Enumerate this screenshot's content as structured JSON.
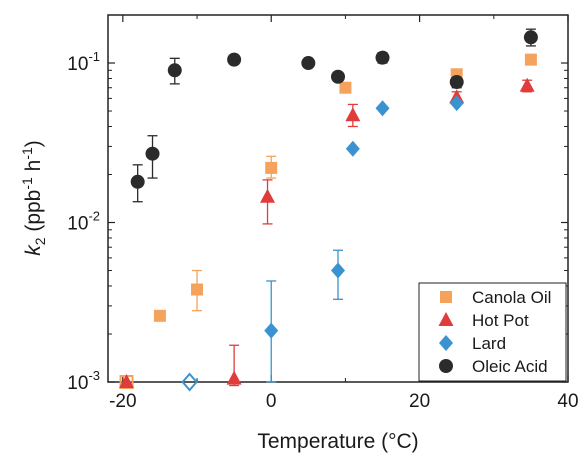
{
  "chart_data": {
    "type": "scatter",
    "xlabel": "Temperature (°C)",
    "ylabel": {
      "base": "k",
      "sub": "2",
      "unit_open": " (ppb",
      "sup1": "-1",
      "unit_mid": " h",
      "sup2": "-1",
      "unit_close": ")"
    },
    "xlim": [
      -22,
      40
    ],
    "ylim": [
      0.001,
      0.2
    ],
    "yscale": "log",
    "x_ticks": [
      -20,
      0,
      20,
      40
    ],
    "x_tick_labels": [
      "-20",
      "0",
      "20",
      "40"
    ],
    "y_ticks": [
      0.001,
      0.01,
      0.1
    ],
    "y_tick_labels": [
      {
        "base": "10",
        "exp": "-3"
      },
      {
        "base": "10",
        "exp": "-2"
      },
      {
        "base": "10",
        "exp": "-1"
      }
    ],
    "legend_position": "bottom-right",
    "series": [
      {
        "name": "Canola Oil",
        "color": "#f5a35c",
        "marker": "square",
        "points": [
          {
            "x": -19.5,
            "y": 0.001,
            "hollow": true
          },
          {
            "x": -15,
            "y": 0.0026
          },
          {
            "x": -10,
            "y": 0.0038,
            "lo": 0.0028,
            "hi": 0.005
          },
          {
            "x": 0,
            "y": 0.022,
            "lo": 0.019,
            "hi": 0.026
          },
          {
            "x": 10,
            "y": 0.07
          },
          {
            "x": 25,
            "y": 0.085
          },
          {
            "x": 35,
            "y": 0.105
          }
        ]
      },
      {
        "name": "Hot Pot",
        "color": "#e03c3c",
        "marker": "triangle",
        "points": [
          {
            "x": -19.5,
            "y": 0.001
          },
          {
            "x": -5,
            "y": 0.00105,
            "lo": 0.00095,
            "hi": 0.0017
          },
          {
            "x": -0.5,
            "y": 0.0145,
            "lo": 0.0098,
            "hi": 0.0185
          },
          {
            "x": 11,
            "y": 0.047,
            "lo": 0.04,
            "hi": 0.055
          },
          {
            "x": 25,
            "y": 0.061,
            "lo": 0.056,
            "hi": 0.066
          },
          {
            "x": 34.5,
            "y": 0.072,
            "lo": 0.066,
            "hi": 0.078
          }
        ]
      },
      {
        "name": "Lard",
        "color": "#3a93d0",
        "marker": "diamond",
        "points": [
          {
            "x": -11,
            "y": 0.001,
            "hollow": true
          },
          {
            "x": 0,
            "y": 0.0021,
            "lo": 0.001,
            "hi": 0.0043
          },
          {
            "x": 9,
            "y": 0.005,
            "lo": 0.0033,
            "hi": 0.0067
          },
          {
            "x": 11,
            "y": 0.029
          },
          {
            "x": 15,
            "y": 0.052
          },
          {
            "x": 25,
            "y": 0.056
          }
        ]
      },
      {
        "name": "Oleic Acid",
        "color": "#2b2b2b",
        "marker": "circle",
        "points": [
          {
            "x": -18,
            "y": 0.018,
            "lo": 0.0135,
            "hi": 0.023
          },
          {
            "x": -16,
            "y": 0.027,
            "lo": 0.019,
            "hi": 0.035
          },
          {
            "x": -13,
            "y": 0.09,
            "lo": 0.074,
            "hi": 0.107
          },
          {
            "x": -5,
            "y": 0.105,
            "lo": 0.099,
            "hi": 0.11
          },
          {
            "x": 5,
            "y": 0.1,
            "lo": 0.095,
            "hi": 0.105
          },
          {
            "x": 9,
            "y": 0.082,
            "lo": 0.077,
            "hi": 0.087
          },
          {
            "x": 15,
            "y": 0.108,
            "lo": 0.1,
            "hi": 0.116
          },
          {
            "x": 25,
            "y": 0.076,
            "lo": 0.07,
            "hi": 0.081
          },
          {
            "x": 35,
            "y": 0.145,
            "lo": 0.128,
            "hi": 0.163
          }
        ]
      }
    ]
  }
}
